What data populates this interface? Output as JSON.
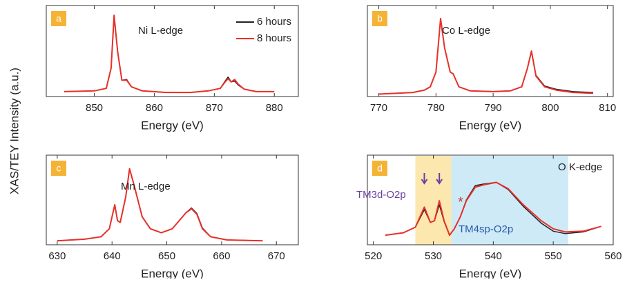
{
  "ylabel": "XAS/TEY Intensity (a.u.)",
  "chart_data": [
    {
      "type": "line",
      "letter": "a",
      "title": "Ni L-edge",
      "xlabel": "Energy (eV)",
      "legend": "upper right",
      "x": [
        845,
        850,
        852,
        852.8,
        853.3,
        853.9,
        854.6,
        855.4,
        856.2,
        858,
        862,
        866,
        869,
        871,
        871.8,
        872.3,
        872.8,
        873.4,
        874,
        875,
        877,
        880
      ],
      "series": [
        {
          "name": "6 hours",
          "color": "#222222",
          "values": [
            0.06,
            0.07,
            0.1,
            0.35,
            0.98,
            0.55,
            0.2,
            0.21,
            0.12,
            0.07,
            0.05,
            0.05,
            0.07,
            0.1,
            0.19,
            0.24,
            0.18,
            0.19,
            0.14,
            0.09,
            0.06,
            0.06
          ]
        },
        {
          "name": "8 hours",
          "color": "#e8302a",
          "values": [
            0.06,
            0.07,
            0.1,
            0.35,
            1.0,
            0.55,
            0.2,
            0.2,
            0.12,
            0.07,
            0.05,
            0.05,
            0.07,
            0.1,
            0.18,
            0.22,
            0.18,
            0.21,
            0.15,
            0.09,
            0.06,
            0.06
          ]
        }
      ],
      "xlim": [
        842,
        884
      ],
      "xticks": [
        850,
        860,
        870,
        880
      ],
      "ylim": [
        0,
        1.12
      ]
    },
    {
      "type": "line",
      "letter": "b",
      "title": "Co L-edge",
      "xlabel": "Energy (eV)",
      "x": [
        770,
        776,
        778,
        779,
        780,
        780.8,
        781.5,
        782.5,
        783,
        784,
        786,
        790,
        793,
        795,
        796,
        796.7,
        797.5,
        798.3,
        799,
        801,
        804,
        807.5
      ],
      "series": [
        {
          "color": "#222222",
          "values": [
            0.03,
            0.05,
            0.08,
            0.12,
            0.3,
            0.95,
            0.6,
            0.3,
            0.28,
            0.12,
            0.07,
            0.06,
            0.07,
            0.12,
            0.35,
            0.55,
            0.26,
            0.19,
            0.13,
            0.09,
            0.06,
            0.05
          ]
        },
        {
          "color": "#e8302a",
          "values": [
            0.03,
            0.05,
            0.08,
            0.12,
            0.3,
            0.96,
            0.6,
            0.3,
            0.28,
            0.12,
            0.07,
            0.06,
            0.07,
            0.12,
            0.35,
            0.56,
            0.25,
            0.18,
            0.12,
            0.08,
            0.05,
            0.04
          ]
        }
      ],
      "xlim": [
        768,
        811
      ],
      "xticks": [
        770,
        780,
        790,
        800,
        810
      ],
      "ylim": [
        0,
        1.12
      ]
    },
    {
      "type": "line",
      "letter": "c",
      "title": "Mn L-edge",
      "xlabel": "Energy (eV)",
      "x": [
        630,
        635,
        638,
        639.5,
        640.5,
        641,
        641.5,
        642.5,
        643.2,
        644,
        645.5,
        647,
        649,
        651,
        652,
        653.5,
        654.5,
        655.5,
        656.5,
        658,
        661,
        667.5
      ],
      "series": [
        {
          "color": "#222222",
          "values": [
            0.05,
            0.07,
            0.1,
            0.2,
            0.5,
            0.3,
            0.28,
            0.6,
            0.95,
            0.75,
            0.35,
            0.2,
            0.15,
            0.2,
            0.28,
            0.4,
            0.46,
            0.39,
            0.21,
            0.1,
            0.06,
            0.05
          ]
        },
        {
          "color": "#e8302a",
          "values": [
            0.05,
            0.07,
            0.1,
            0.2,
            0.5,
            0.3,
            0.28,
            0.6,
            0.95,
            0.75,
            0.35,
            0.2,
            0.15,
            0.2,
            0.28,
            0.4,
            0.45,
            0.38,
            0.2,
            0.1,
            0.06,
            0.05
          ]
        }
      ],
      "xlim": [
        628,
        674
      ],
      "xticks": [
        630,
        640,
        650,
        660,
        670
      ],
      "ylim": [
        0,
        1.12
      ]
    },
    {
      "type": "line",
      "letter": "d",
      "title": "O K-edge",
      "xlabel": "Energy (eV)",
      "regions": [
        {
          "x0": 527,
          "x1": 533,
          "color": "#fbe3a0"
        },
        {
          "x0": 533,
          "x1": 552.5,
          "color": "#c5e6f6"
        }
      ],
      "annotations": [
        "TM3d-O2p",
        "TM4sp-O2p",
        "*"
      ],
      "x": [
        522,
        525,
        527,
        528.5,
        529.5,
        530.2,
        531,
        531.8,
        532.7,
        533.5,
        534.5,
        535.5,
        537,
        538.5,
        540.5,
        542.5,
        545,
        548,
        550,
        552,
        555,
        558
      ],
      "series": [
        {
          "color": "#222222",
          "values": [
            0.12,
            0.15,
            0.22,
            0.44,
            0.28,
            0.3,
            0.5,
            0.29,
            0.12,
            0.2,
            0.35,
            0.56,
            0.74,
            0.76,
            0.78,
            0.69,
            0.48,
            0.27,
            0.17,
            0.14,
            0.16,
            0.23
          ]
        },
        {
          "color": "#e8302a",
          "values": [
            0.12,
            0.15,
            0.22,
            0.47,
            0.28,
            0.3,
            0.55,
            0.3,
            0.12,
            0.2,
            0.35,
            0.55,
            0.72,
            0.75,
            0.78,
            0.7,
            0.5,
            0.3,
            0.2,
            0.16,
            0.17,
            0.23
          ]
        }
      ],
      "xlim": [
        519,
        560
      ],
      "xticks": [
        520,
        530,
        540,
        550,
        560
      ],
      "ylim": [
        0,
        1.12
      ]
    }
  ]
}
